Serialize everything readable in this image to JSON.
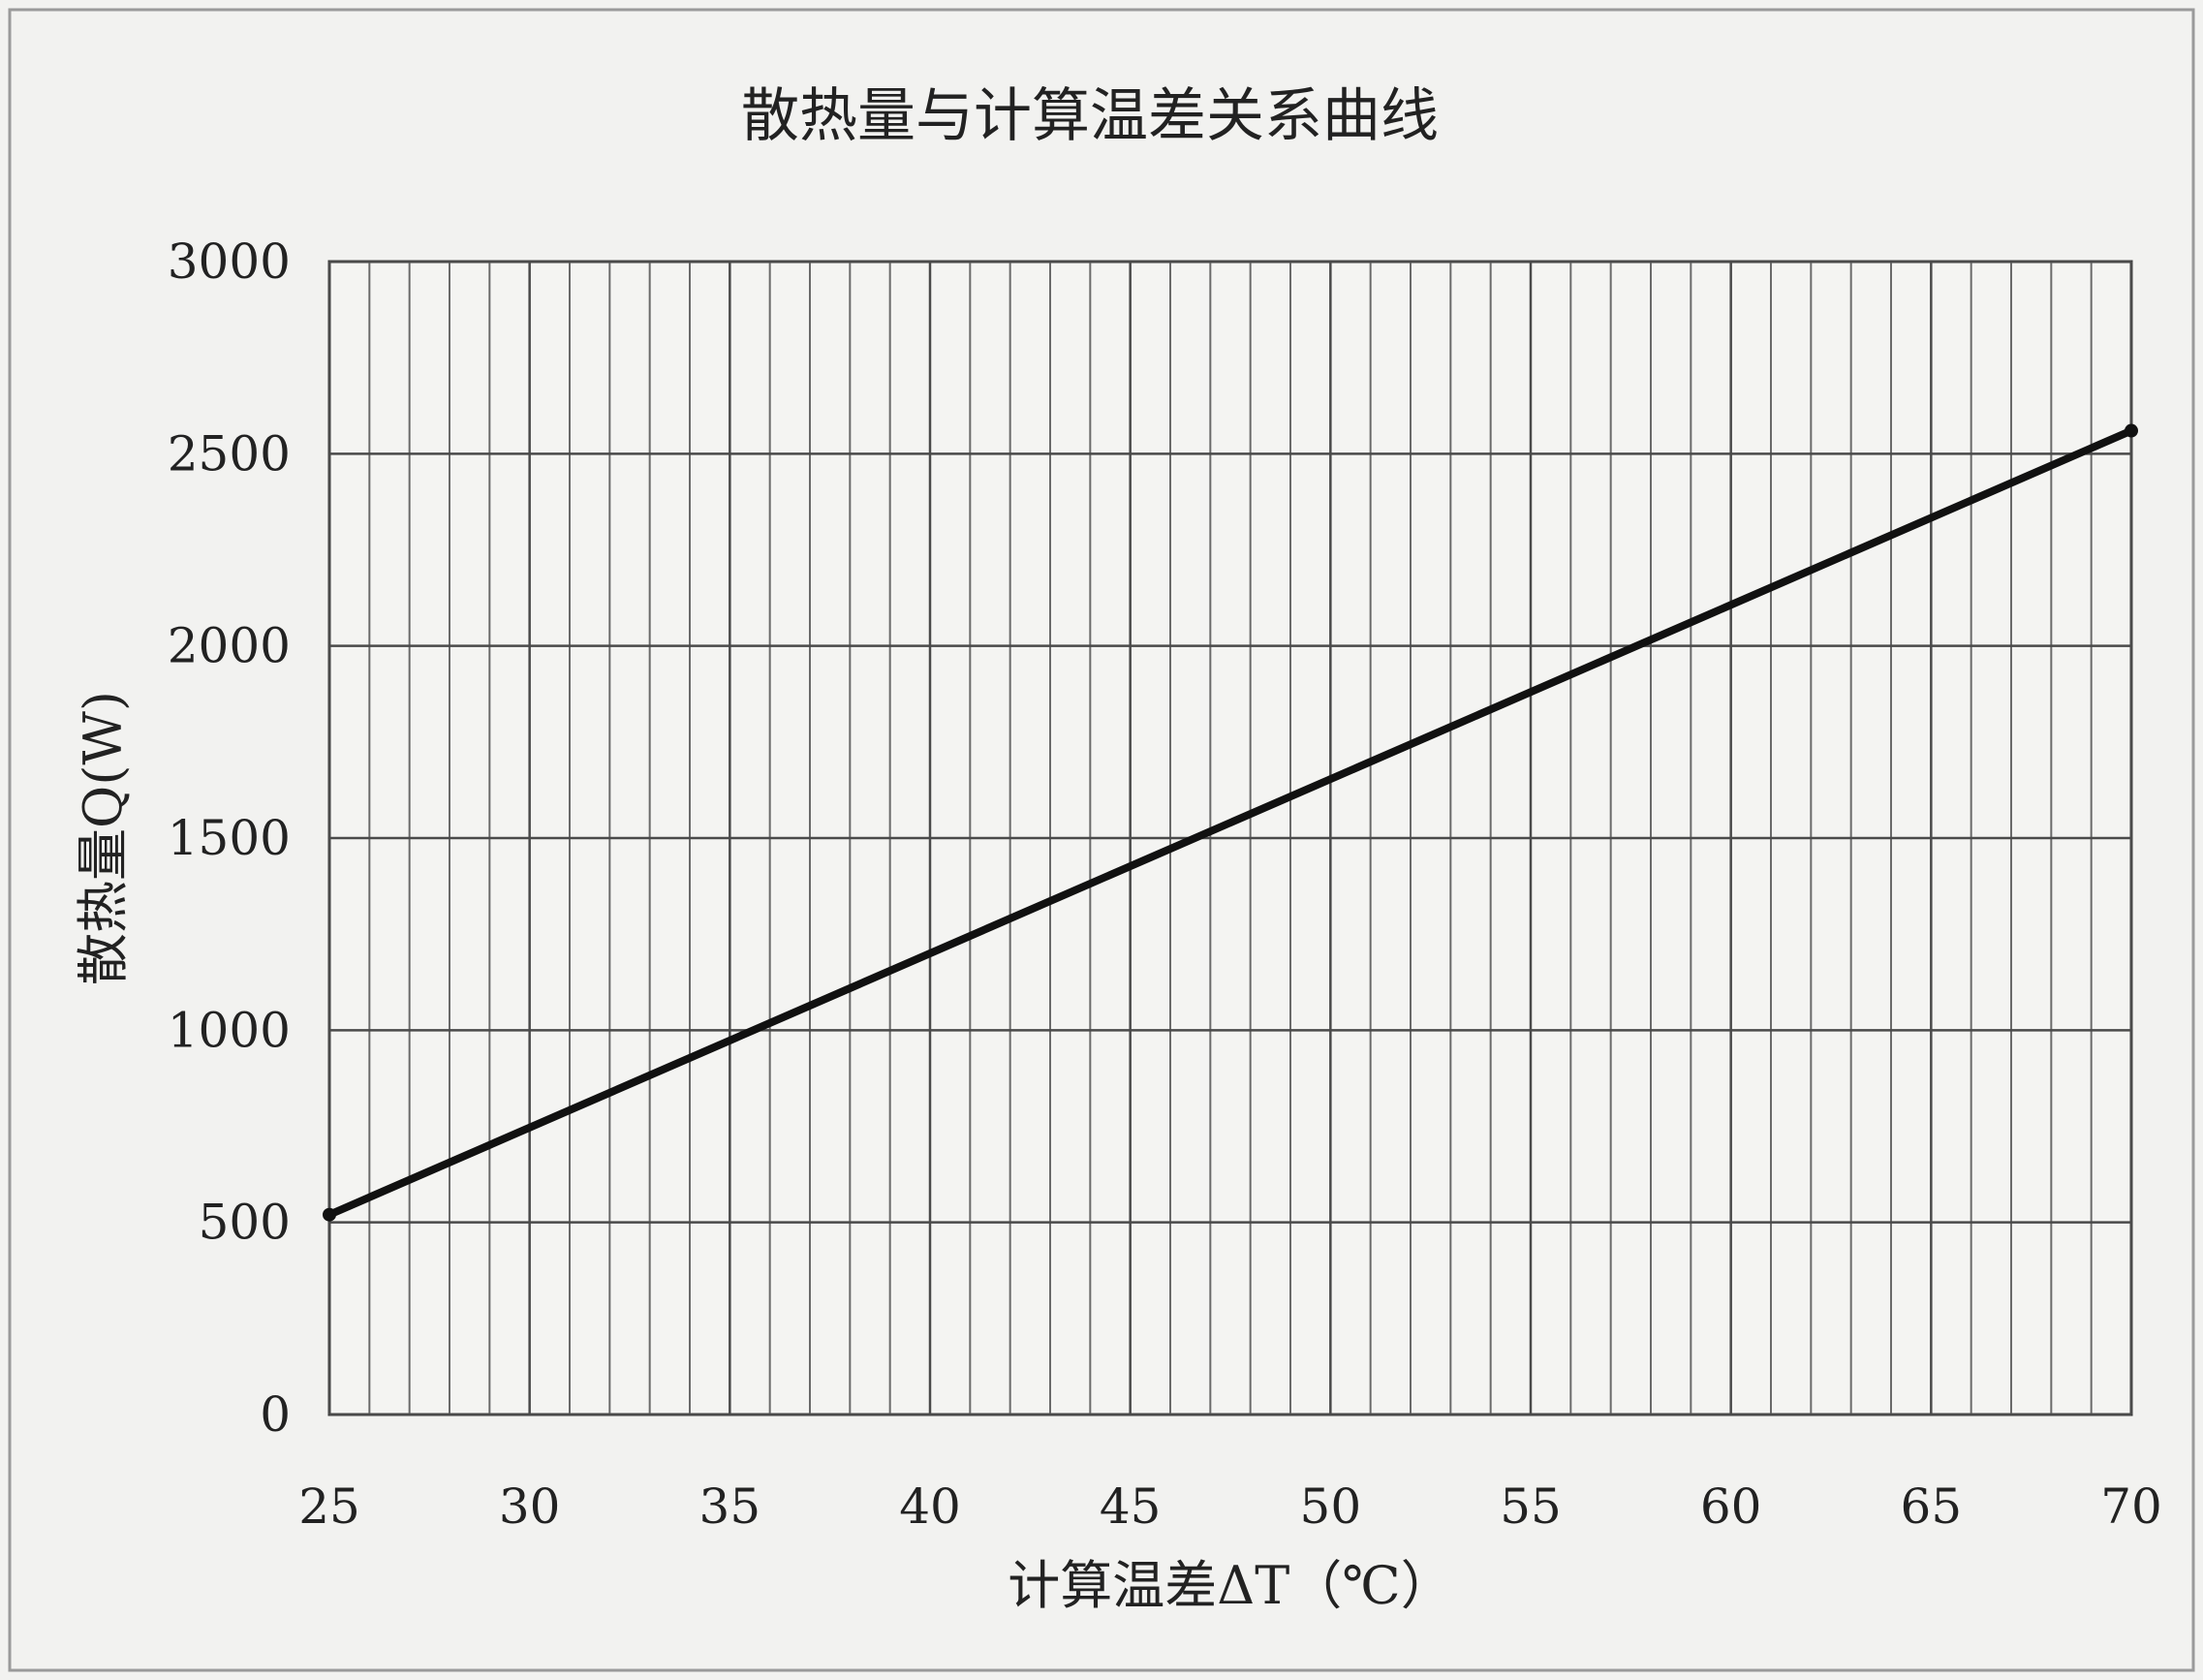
{
  "chart_data": {
    "type": "line",
    "title": "散热量与计算温差关系曲线",
    "xlabel": "计算温差ΔT（℃）",
    "ylabel": "散热量Q(W)",
    "xlim": [
      25,
      70
    ],
    "ylim": [
      0,
      3000
    ],
    "x_ticks": [
      25,
      30,
      35,
      40,
      45,
      50,
      55,
      60,
      65,
      70
    ],
    "y_ticks": [
      0,
      500,
      1000,
      1500,
      2000,
      2500,
      3000
    ],
    "x_minor_step": 1,
    "grid": true,
    "legend": "none",
    "series": [
      {
        "x": [
          25,
          70
        ],
        "y": [
          520,
          2560
        ],
        "color": "#111111"
      }
    ]
  }
}
